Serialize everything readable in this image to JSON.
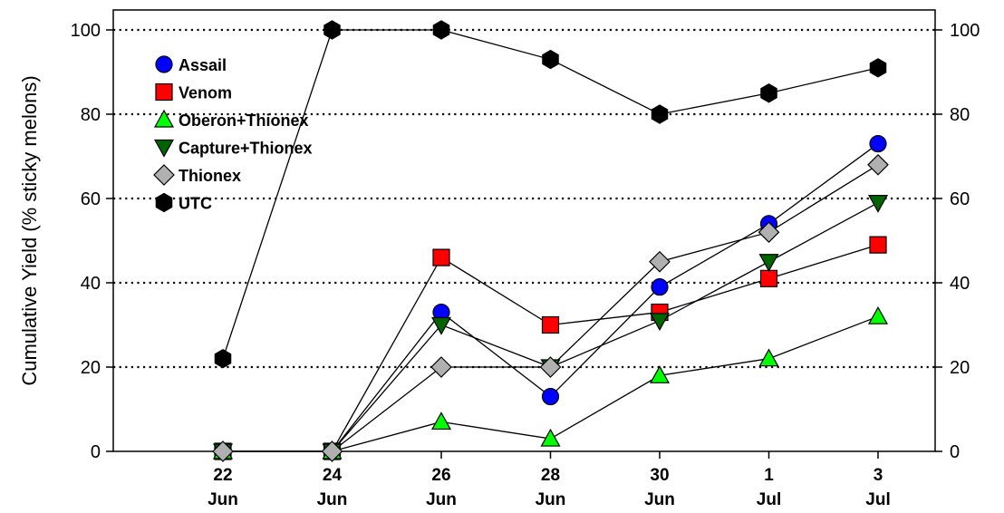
{
  "chart_data": {
    "type": "line",
    "title": "",
    "ylabel": "Cumulative Yield (% sticky melons)",
    "xlabel": "",
    "ylim": [
      0,
      100
    ],
    "yticks": [
      0,
      20,
      40,
      60,
      80,
      100
    ],
    "right_axis": true,
    "grid": "horizontal dotted at 20, 40, 80, 100",
    "legend_position": "top-left",
    "categories": [
      {
        "day": "22",
        "month": "Jun"
      },
      {
        "day": "24",
        "month": "Jun"
      },
      {
        "day": "26",
        "month": "Jun"
      },
      {
        "day": "28",
        "month": "Jun"
      },
      {
        "day": "30",
        "month": "Jun"
      },
      {
        "day": "1",
        "month": "Jul"
      },
      {
        "day": "3",
        "month": "Jul"
      }
    ],
    "series": [
      {
        "name": "Assail",
        "marker": "circle",
        "color": "#0000ff",
        "values": [
          0,
          0,
          33,
          13,
          39,
          54,
          73
        ]
      },
      {
        "name": "Venom",
        "marker": "square",
        "color": "#ff0000",
        "values": [
          0,
          0,
          46,
          30,
          33,
          41,
          49
        ]
      },
      {
        "name": "Oberon+Thionex",
        "marker": "triangle-up",
        "color": "#00ff00",
        "values": [
          0,
          0,
          7,
          3,
          18,
          22,
          32
        ]
      },
      {
        "name": "Capture+Thionex",
        "marker": "triangle-down",
        "color": "#006400",
        "values": [
          0,
          0,
          30,
          20,
          31,
          45,
          59
        ]
      },
      {
        "name": "Thionex",
        "marker": "diamond",
        "color": "#b0b0b0",
        "values": [
          0,
          0,
          20,
          20,
          45,
          52,
          68
        ]
      },
      {
        "name": "UTC",
        "marker": "hexagon",
        "color": "#000000",
        "values": [
          22,
          100,
          100,
          93,
          80,
          85,
          91
        ]
      }
    ]
  }
}
